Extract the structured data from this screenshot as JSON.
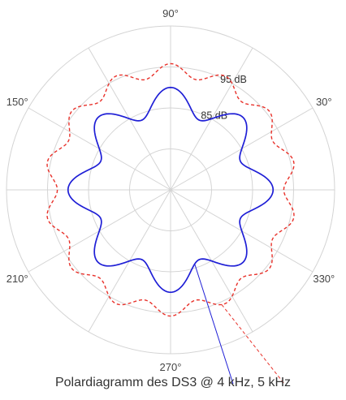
{
  "chart_data": {
    "type": "line",
    "subtype": "polar",
    "title": "Polardiagramm des DS3 @ 4 kHz, 5 kHz",
    "angle_labels": [
      {
        "deg": 90,
        "text": "90°"
      },
      {
        "deg": 30,
        "text": "30°"
      },
      {
        "deg": 150,
        "text": "150°"
      },
      {
        "deg": 210,
        "text": "210°"
      },
      {
        "deg": 270,
        "text": "270°"
      },
      {
        "deg": 330,
        "text": "330°"
      }
    ],
    "ring_labels": [
      {
        "value": 85,
        "text": "85 dB"
      },
      {
        "value": 95,
        "text": "95 dB"
      }
    ],
    "radial_range_db": [
      65,
      105
    ],
    "grid": true,
    "series": [
      {
        "freq": "4 kHz",
        "color": "#1f1fd6",
        "line_style": "solid",
        "profile": {
          "base_db": 86.7,
          "ripple_db": 3.3,
          "lobes": 8,
          "phase_deg": 0
        }
      },
      {
        "freq": "5 kHz",
        "color": "#e8312a",
        "line_style": "dashed",
        "profile": {
          "base_db": 94.2,
          "ripple_db": 1.6,
          "lobes": 14,
          "phase_deg": 90
        }
      }
    ]
  }
}
